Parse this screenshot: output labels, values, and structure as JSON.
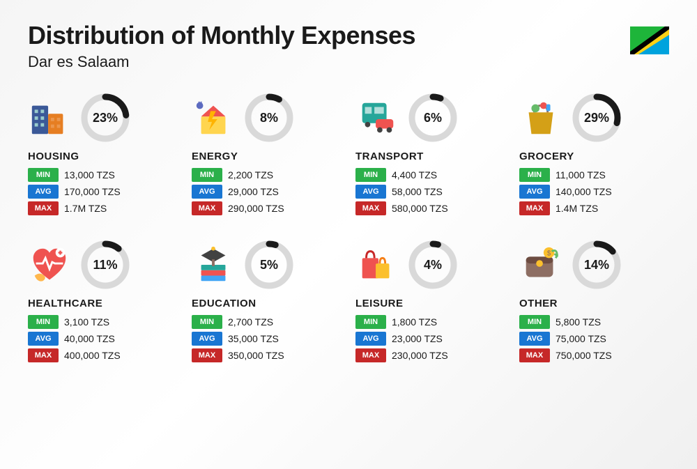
{
  "title": "Distribution of Monthly Expenses",
  "subtitle": "Dar es Salaam",
  "donut": {
    "track_color": "#d9d9d9",
    "progress_color": "#1a1a1a",
    "stroke_width": 9,
    "radius": 30,
    "size": 74
  },
  "stat_labels": {
    "min": "MIN",
    "avg": "AVG",
    "max": "MAX"
  },
  "stat_colors": {
    "min": "#2bb04a",
    "avg": "#1976d2",
    "max": "#c62828"
  },
  "categories": [
    {
      "name": "HOUSING",
      "pct": 23,
      "icon": "housing",
      "min": "13,000 TZS",
      "avg": "170,000 TZS",
      "max": "1.7M TZS"
    },
    {
      "name": "ENERGY",
      "pct": 8,
      "icon": "energy",
      "min": "2,200 TZS",
      "avg": "29,000 TZS",
      "max": "290,000 TZS"
    },
    {
      "name": "TRANSPORT",
      "pct": 6,
      "icon": "transport",
      "min": "4,400 TZS",
      "avg": "58,000 TZS",
      "max": "580,000 TZS"
    },
    {
      "name": "GROCERY",
      "pct": 29,
      "icon": "grocery",
      "min": "11,000 TZS",
      "avg": "140,000 TZS",
      "max": "1.4M TZS"
    },
    {
      "name": "HEALTHCARE",
      "pct": 11,
      "icon": "healthcare",
      "min": "3,100 TZS",
      "avg": "40,000 TZS",
      "max": "400,000 TZS"
    },
    {
      "name": "EDUCATION",
      "pct": 5,
      "icon": "education",
      "min": "2,700 TZS",
      "avg": "35,000 TZS",
      "max": "350,000 TZS"
    },
    {
      "name": "LEISURE",
      "pct": 4,
      "icon": "leisure",
      "min": "1,800 TZS",
      "avg": "23,000 TZS",
      "max": "230,000 TZS"
    },
    {
      "name": "OTHER",
      "pct": 14,
      "icon": "other",
      "min": "5,800 TZS",
      "avg": "75,000 TZS",
      "max": "750,000 TZS"
    }
  ]
}
